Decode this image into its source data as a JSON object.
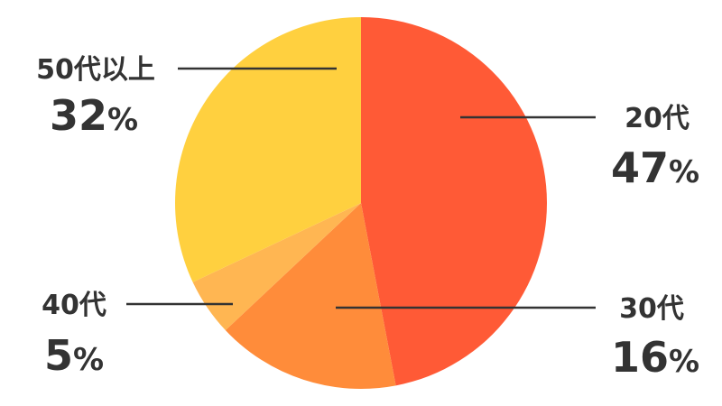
{
  "chart_data": {
    "type": "pie",
    "start": "top",
    "direction": "clockwise",
    "slices": [
      {
        "label": "20代",
        "value": 47,
        "value_label": "47%",
        "color": "#FF5A36"
      },
      {
        "label": "30代",
        "value": 16,
        "value_label": "16%",
        "color": "#FF8C3A"
      },
      {
        "label": "40代",
        "value": 5,
        "value_label": "5%",
        "color": "#FFB652"
      },
      {
        "label": "50代以上",
        "value": 32,
        "value_label": "32%",
        "color": "#FFD03F"
      }
    ]
  }
}
